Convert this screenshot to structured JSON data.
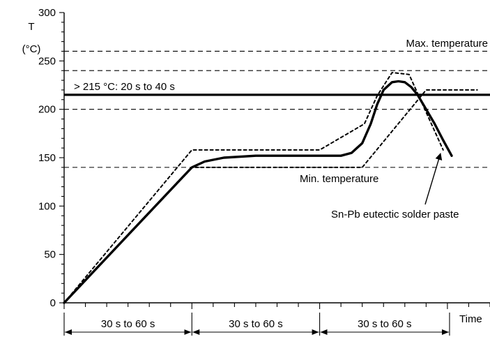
{
  "chart_data": {
    "type": "line",
    "ylabel": "T",
    "yunit": "(°C)",
    "xlabel": "Time",
    "ylim": [
      0,
      300
    ],
    "xlim": [
      0,
      200
    ],
    "yticks": [
      0,
      50,
      100,
      150,
      200,
      250,
      300
    ],
    "hlines": [
      {
        "y": 260,
        "style": "dashed",
        "label": "Max. temperature"
      },
      {
        "y": 240,
        "style": "dashed",
        "label": ""
      },
      {
        "y": 200,
        "style": "dashed",
        "label": ""
      },
      {
        "y": 140,
        "style": "dashed",
        "label": "Min. temperature"
      },
      {
        "y": 215,
        "style": "solid",
        "label": "> 215 °C: 20 s to 40 s"
      }
    ],
    "series": [
      {
        "name": "Sn-Pb eutectic solder paste",
        "style": "solid-thick",
        "x": [
          0,
          30,
          60,
          66,
          75,
          90,
          105,
          120,
          130,
          135,
          140,
          144,
          147,
          150,
          154,
          157,
          160,
          163,
          166,
          170,
          174,
          178,
          182
        ],
        "y": [
          0,
          70,
          140,
          146,
          150,
          152,
          152,
          152,
          152,
          155,
          165,
          185,
          205,
          220,
          228,
          229,
          228,
          223,
          215,
          200,
          185,
          168,
          152
        ]
      },
      {
        "name": "",
        "style": "dotted",
        "x": [
          0,
          60,
          60,
          120,
          140,
          170,
          194
        ],
        "y": [
          0,
          140,
          140,
          140,
          140,
          220,
          220
        ]
      },
      {
        "name": "",
        "style": "dotted",
        "x": [
          0,
          60,
          120,
          141,
          147,
          154,
          162,
          178
        ],
        "y": [
          0,
          158,
          158,
          185,
          214,
          238,
          236,
          158
        ]
      }
    ],
    "phases": [
      {
        "from": 0,
        "to": 60,
        "label": "30 s to 60 s"
      },
      {
        "from": 60,
        "to": 120,
        "label": "30 s to 60 s"
      },
      {
        "from": 120,
        "to": 181,
        "label": "30 s to 60 s"
      }
    ],
    "annotations": {
      "max_label": "Max. temperature",
      "min_label": "Min. temperature",
      "band_label": "> 215 °C: 20 s to 40 s",
      "paste_label": "Sn-Pb eutectic solder paste"
    }
  }
}
